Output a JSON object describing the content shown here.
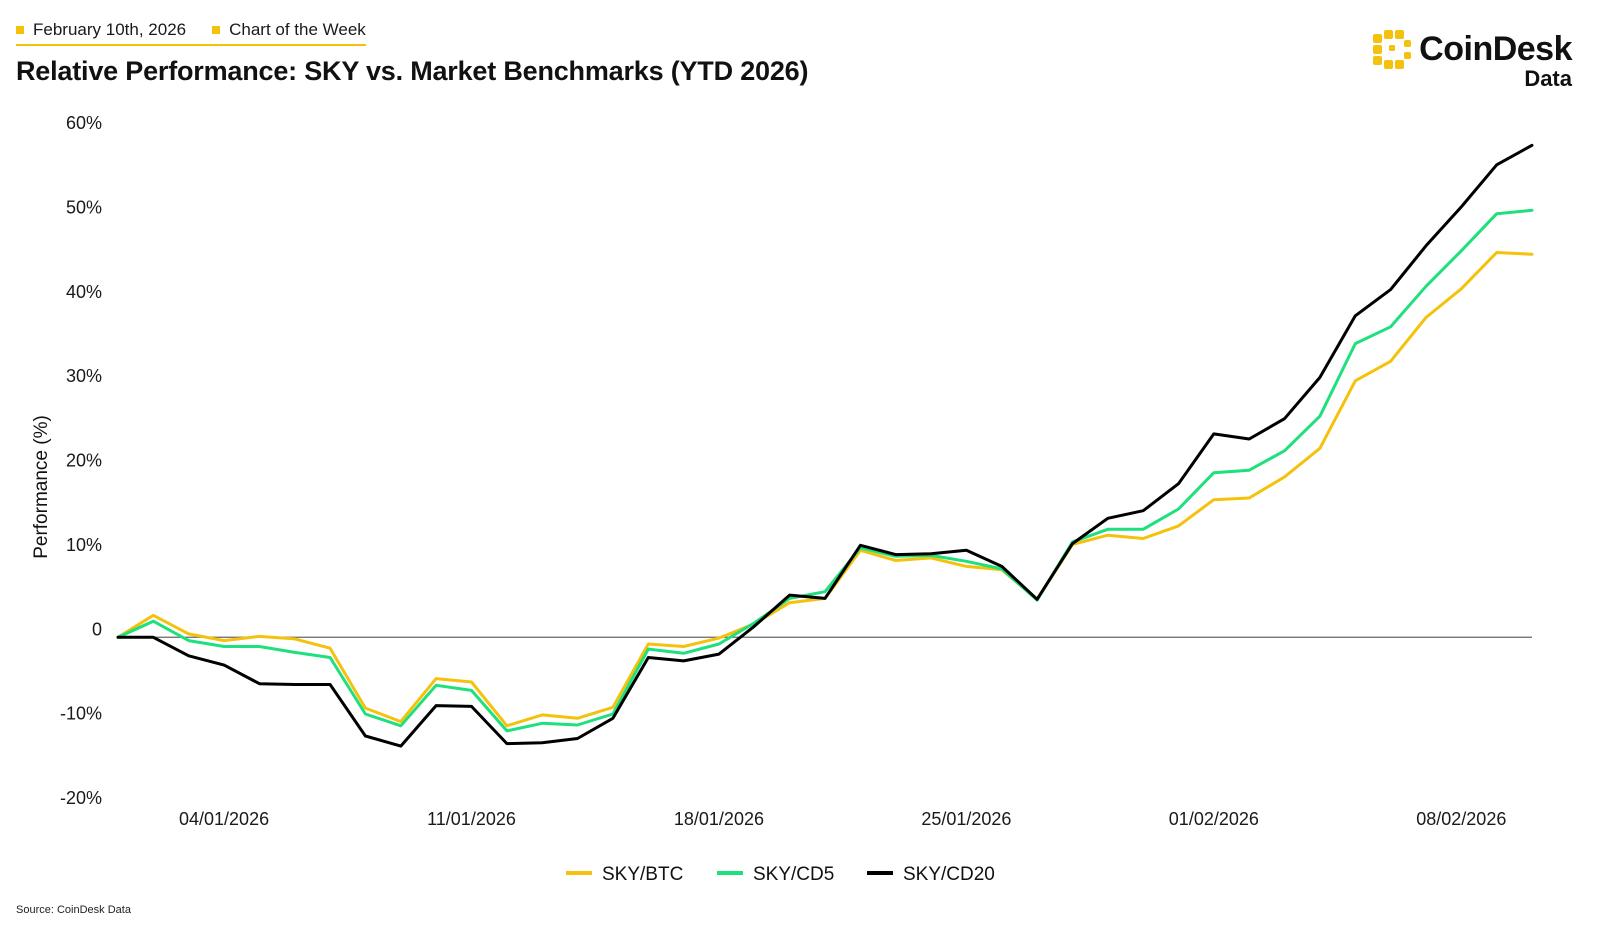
{
  "header": {
    "date": "February 10th, 2026",
    "tag": "Chart of the Week",
    "title": "Relative Performance: SKY vs. Market Benchmarks (YTD 2026)"
  },
  "brand": {
    "name": "CoinDesk",
    "sub": "Data",
    "accent": "#f4c20d"
  },
  "footer": {
    "source": "Source: CoinDesk Data"
  },
  "chart_data": {
    "type": "line",
    "title": "Relative Performance: SKY vs. Market Benchmarks (YTD 2026)",
    "xlabel": "",
    "ylabel": "Performance (%)",
    "ylim": [
      -20,
      60
    ],
    "yticks": [
      -20,
      -10,
      0,
      10,
      20,
      30,
      40,
      50,
      60
    ],
    "ytick_labels": [
      "-20%",
      "-10%",
      "0",
      "10%",
      "20%",
      "30%",
      "40%",
      "50%",
      "60%"
    ],
    "x": [
      "2026-01-01",
      "2026-01-02",
      "2026-01-03",
      "2026-01-04",
      "2026-01-05",
      "2026-01-06",
      "2026-01-07",
      "2026-01-08",
      "2026-01-09",
      "2026-01-10",
      "2026-01-11",
      "2026-01-12",
      "2026-01-13",
      "2026-01-14",
      "2026-01-15",
      "2026-01-16",
      "2026-01-17",
      "2026-01-18",
      "2026-01-19",
      "2026-01-20",
      "2026-01-21",
      "2026-01-22",
      "2026-01-23",
      "2026-01-24",
      "2026-01-25",
      "2026-01-26",
      "2026-01-27",
      "2026-01-28",
      "2026-01-29",
      "2026-01-30",
      "2026-01-31",
      "2026-02-01",
      "2026-02-02",
      "2026-02-03",
      "2026-02-04",
      "2026-02-05",
      "2026-02-06",
      "2026-02-07",
      "2026-02-08",
      "2026-02-09",
      "2026-02-10"
    ],
    "xtick_labels": [
      {
        "index": 3,
        "label": "04/01/2026"
      },
      {
        "index": 10,
        "label": "11/01/2026"
      },
      {
        "index": 17,
        "label": "18/01/2026"
      },
      {
        "index": 24,
        "label": "25/01/2026"
      },
      {
        "index": 31,
        "label": "01/02/2026"
      },
      {
        "index": 38,
        "label": "08/02/2026"
      }
    ],
    "series": [
      {
        "name": "SKY/BTC",
        "color": "#f4c20d",
        "values": [
          0,
          2.6,
          0.4,
          -0.4,
          0.1,
          -0.2,
          -1.3,
          -8.4,
          -10.0,
          -4.9,
          -5.3,
          -10.5,
          -9.2,
          -9.6,
          -8.3,
          -0.8,
          -1.1,
          -0.1,
          1.6,
          4.1,
          4.6,
          10.3,
          9.1,
          9.4,
          8.4,
          8.0,
          4.5,
          11.0,
          12.1,
          11.7,
          13.2,
          16.3,
          16.5,
          19.0,
          22.4,
          30.4,
          32.7,
          37.9,
          41.3,
          45.6,
          45.4
        ]
      },
      {
        "name": "SKY/CD5",
        "color": "#1ee07c",
        "values": [
          0,
          1.9,
          -0.4,
          -1.1,
          -1.1,
          -1.8,
          -2.4,
          -9.1,
          -10.5,
          -5.7,
          -6.3,
          -11.1,
          -10.2,
          -10.4,
          -9.1,
          -1.4,
          -1.9,
          -0.8,
          1.7,
          4.6,
          5.4,
          10.6,
          9.6,
          9.7,
          9.0,
          8.1,
          4.4,
          11.3,
          12.8,
          12.8,
          15.2,
          19.5,
          19.8,
          22.1,
          26.2,
          34.8,
          36.8,
          41.6,
          45.8,
          50.2,
          50.6
        ]
      },
      {
        "name": "SKY/CD20",
        "color": "#000000",
        "values": [
          0,
          0,
          -2.2,
          -3.3,
          -5.5,
          -5.6,
          -5.6,
          -11.7,
          -12.9,
          -8.1,
          -8.2,
          -12.6,
          -12.5,
          -12.0,
          -9.6,
          -2.4,
          -2.8,
          -2.0,
          1.3,
          5.0,
          4.6,
          10.9,
          9.8,
          9.9,
          10.3,
          8.4,
          4.5,
          11.1,
          14.1,
          15.0,
          18.2,
          24.1,
          23.5,
          25.9,
          30.8,
          38.1,
          41.2,
          46.4,
          51.0,
          56.0,
          58.3
        ]
      }
    ],
    "legend_position": "bottom-center",
    "grid": false
  }
}
